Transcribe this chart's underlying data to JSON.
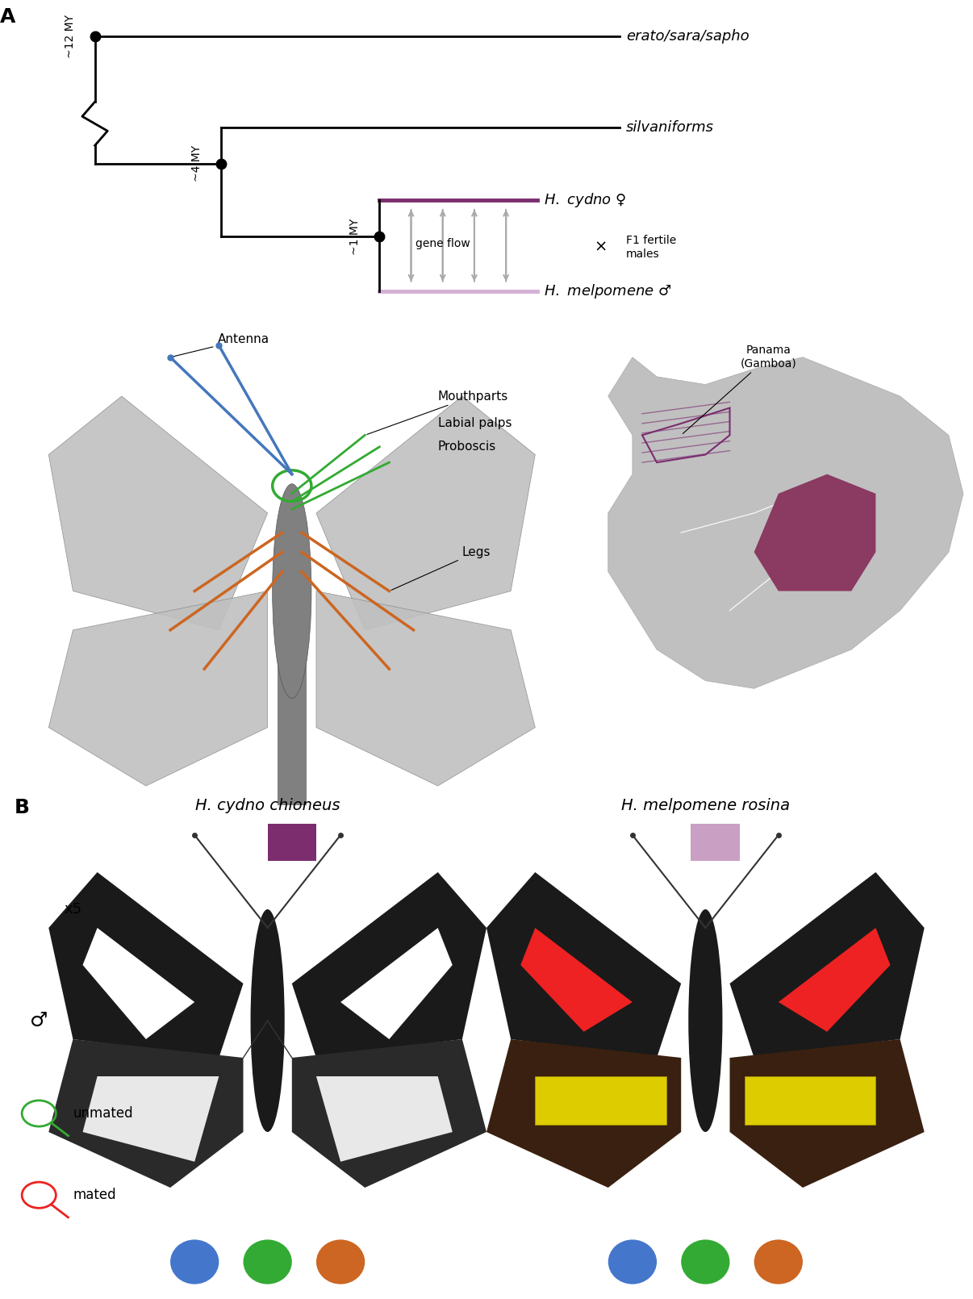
{
  "panel_A_label": "A",
  "panel_B_label": "B",
  "cydno_color": "#7B2D6E",
  "melpomene_color": "#C9A0C4",
  "cydno_color_dark": "#7B2D6E",
  "melpomene_color_light": "#D4B0D4",
  "gene_flow_color": "#AAAAAA",
  "title_font": "DejaVu Sans",
  "tree_labels": [
    "erato/sara/sapho",
    "silvaniforms",
    "H. cydno ♀",
    "H. melpomene ♂"
  ],
  "time_labels": [
    "~12 MY",
    "~4 MY",
    "~1 MY"
  ],
  "body_color": "#BBBBBB",
  "wing_color": "#BBBBBB",
  "antenna_color": "#4477BB",
  "leg_color": "#CC6622",
  "mouthpart_color": "#33AA33",
  "panama_dark": "#8B3A62",
  "panama_light": "#D4A0C0",
  "dot_colors_left": [
    "#4477CC",
    "#33AA33",
    "#CC6622"
  ],
  "dot_colors_right": [
    "#4477CC",
    "#33AA33",
    "#CC6622"
  ],
  "cydno_square_color": "#7B2D6E",
  "melpo_square_color": "#C9A0C4",
  "bg_color": "#FFFFFF"
}
